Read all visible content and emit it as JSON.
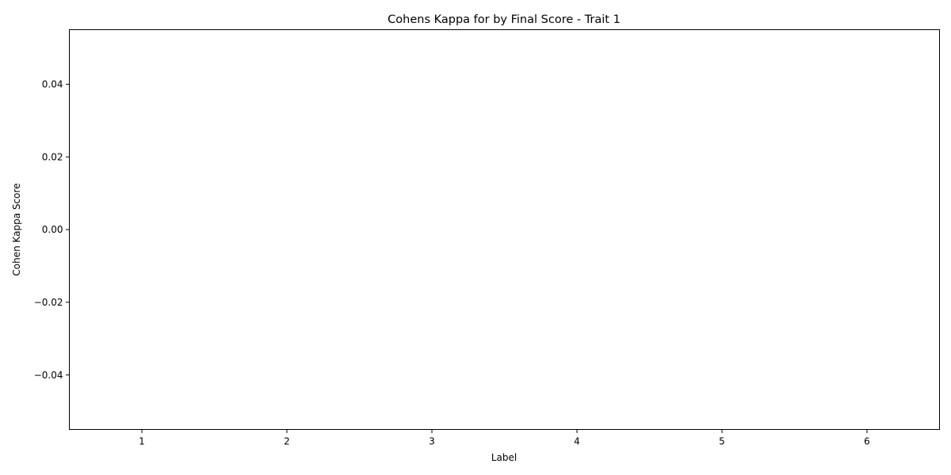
{
  "chart_data": {
    "type": "bar",
    "title": "Cohens Kappa for by Final Score - Trait 1",
    "xlabel": "Label",
    "ylabel": "Cohen Kappa Score",
    "categories": [
      "1",
      "2",
      "3",
      "4",
      "5",
      "6"
    ],
    "values": [
      0,
      0,
      0,
      0,
      0,
      0
    ],
    "xlim": [
      0.5,
      6.5
    ],
    "ylim": [
      -0.055,
      0.055
    ],
    "yticks": [
      -0.04,
      -0.02,
      0.0,
      0.02,
      0.04
    ],
    "ytick_labels": [
      "−0.04",
      "−0.02",
      "0.00",
      "0.02",
      "0.04"
    ],
    "grid": false,
    "legend": "none",
    "bar_color": "#1f77b4"
  }
}
